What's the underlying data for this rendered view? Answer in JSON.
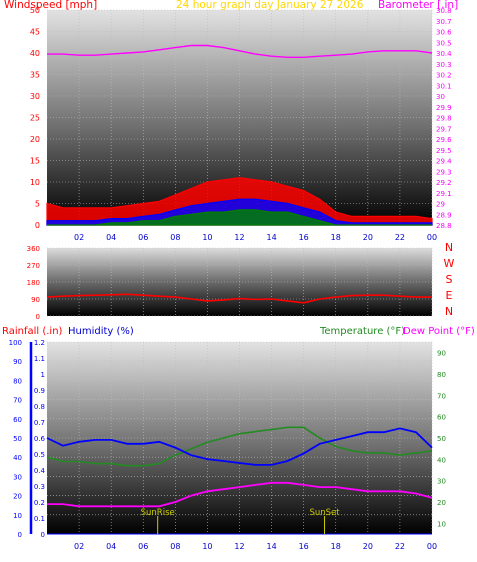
{
  "colors": {
    "wind": "#ff0000",
    "gust_inner": "#0000ff",
    "gust_core": "#008000",
    "barometer": "#ff00ff",
    "direction": "#ff0000",
    "humidity": "#0000ff",
    "temperature": "#228b22",
    "dewpoint": "#ff00ff",
    "rain": "#0000ff",
    "sun": "#cccc00",
    "title": "#ffd700",
    "hour_label": "#0000cc",
    "grid": "#bdbdbd"
  },
  "chart_data": [
    {
      "type": "line",
      "panel": "wind",
      "title": "24 hour graph day  January 27 2026",
      "ylabel_left": "Windspeed [mph]",
      "ylabel_right": "Barometer [.in]",
      "x_ticks": [
        "02",
        "04",
        "06",
        "08",
        "10",
        "12",
        "14",
        "16",
        "18",
        "20",
        "22",
        "00"
      ],
      "y_left_ticks": [
        "0",
        "5",
        "10",
        "15",
        "20",
        "25",
        "30",
        "35",
        "40",
        "45",
        "50"
      ],
      "y_left_lim": [
        0,
        50
      ],
      "y_right_ticks": [
        "28.8",
        "28.9",
        "29",
        "29.1",
        "29.2",
        "29.3",
        "29.4",
        "29.5",
        "29.6",
        "29.7",
        "29.8",
        "29.9",
        "30",
        "30.1",
        "30.2",
        "30.3",
        "30.4",
        "30.5",
        "30.6",
        "30.7",
        "30.8"
      ],
      "y_right_lim": [
        28.8,
        30.8
      ],
      "x": [
        0,
        1,
        2,
        3,
        4,
        5,
        6,
        7,
        8,
        9,
        10,
        11,
        12,
        13,
        14,
        15,
        16,
        17,
        18,
        19,
        20,
        21,
        22,
        23,
        24
      ],
      "series": [
        {
          "name": "Windspeed gust",
          "values": [
            5,
            4,
            4,
            4,
            4,
            4.5,
            5,
            5.5,
            7,
            8.5,
            10,
            10.5,
            11,
            10.5,
            10,
            9,
            8,
            6,
            3,
            2,
            2,
            2,
            2,
            2,
            1.5
          ]
        },
        {
          "name": "Windspeed average",
          "values": [
            1,
            1,
            1,
            1,
            1.5,
            1.5,
            2,
            2.5,
            3.5,
            4.5,
            5,
            5.5,
            6,
            6,
            5.5,
            5,
            4,
            3,
            1,
            0.5,
            0.5,
            0.5,
            0.5,
            0.5,
            0.5
          ]
        },
        {
          "name": "Windspeed low",
          "values": [
            0,
            0,
            0,
            0,
            0.5,
            0.5,
            1,
            1,
            2,
            2.5,
            3,
            3,
            3.5,
            3.5,
            3,
            3,
            2,
            1,
            0,
            0,
            0,
            0,
            0,
            0,
            0
          ]
        },
        {
          "name": "Barometer",
          "values": [
            30.39,
            30.39,
            30.38,
            30.38,
            30.39,
            30.4,
            30.41,
            30.43,
            30.45,
            30.47,
            30.47,
            30.45,
            30.42,
            30.39,
            30.37,
            30.36,
            30.36,
            30.37,
            30.38,
            30.39,
            30.41,
            30.42,
            30.42,
            30.42,
            30.4
          ]
        }
      ]
    },
    {
      "type": "line",
      "panel": "direction",
      "y_ticks": [
        "360",
        "270",
        "180",
        "90",
        "0"
      ],
      "ylim": [
        0,
        360
      ],
      "direction_labels": [
        "N",
        "W",
        "S",
        "E",
        "N"
      ],
      "x": [
        0,
        1,
        2,
        3,
        4,
        5,
        6,
        7,
        8,
        9,
        10,
        11,
        12,
        13,
        14,
        15,
        16,
        17,
        18,
        19,
        20,
        21,
        22,
        23,
        24
      ],
      "series": [
        {
          "name": "Wind direction",
          "values": [
            100,
            105,
            108,
            110,
            112,
            115,
            110,
            105,
            100,
            90,
            80,
            85,
            92,
            88,
            90,
            80,
            70,
            90,
            100,
            108,
            110,
            110,
            105,
            100,
            100
          ]
        }
      ]
    },
    {
      "type": "line",
      "panel": "temperature",
      "label_rainfall": "Rainfall (.in)",
      "label_humidity": "Humidity (%)",
      "label_temperature": "Temperature (°F)",
      "label_dewpoint": "Dew Point (°F)",
      "y_humidity_ticks": [
        "0",
        "10",
        "20",
        "30",
        "40",
        "50",
        "60",
        "70",
        "80",
        "90",
        "100"
      ],
      "humidity_lim": [
        0,
        100
      ],
      "y_rain_ticks": [
        "0",
        "0.1",
        "0.2",
        "0.3",
        "0.4",
        "0.5",
        "0.6",
        "0.7",
        "0.8",
        "0.9",
        "1",
        "1.1",
        "1.2"
      ],
      "rain_lim": [
        0,
        1.2
      ],
      "y_temp_ticks": [
        "10",
        "20",
        "30",
        "40",
        "50",
        "60",
        "70",
        "80",
        "90"
      ],
      "temp_lim": [
        5,
        95
      ],
      "sunrise_label": "SunRise",
      "sunset_label": "SunSet",
      "sunrise_hour": 6.9,
      "sunset_hour": 17.3,
      "x": [
        0,
        1,
        2,
        3,
        4,
        5,
        6,
        7,
        8,
        9,
        10,
        11,
        12,
        13,
        14,
        15,
        16,
        17,
        18,
        19,
        20,
        21,
        22,
        23,
        24
      ],
      "series": [
        {
          "name": "Rainfall",
          "values": [
            0,
            0,
            0,
            0,
            0,
            0,
            0,
            0,
            0,
            0,
            0,
            0,
            0,
            0,
            0,
            0,
            0,
            0,
            0,
            0,
            0,
            0,
            0,
            0,
            0
          ]
        },
        {
          "name": "Humidity",
          "values": [
            50,
            46,
            48,
            49,
            49,
            47,
            47,
            48,
            45,
            41,
            39,
            38,
            37,
            36,
            36,
            38,
            42,
            47,
            49,
            51,
            53,
            53,
            55,
            53,
            45
          ]
        },
        {
          "name": "Temperature",
          "values": [
            41,
            39,
            39,
            38,
            38,
            37,
            37,
            38,
            42,
            45,
            48,
            50,
            52,
            53,
            54,
            55,
            55,
            50,
            46,
            44,
            43,
            43,
            42,
            43,
            44
          ]
        },
        {
          "name": "Dew Point",
          "values": [
            19,
            19,
            18,
            18,
            18,
            18,
            18,
            18,
            20,
            23,
            25,
            26,
            27,
            28,
            29,
            29,
            28,
            27,
            27,
            26,
            25,
            25,
            25,
            24,
            22
          ]
        }
      ]
    }
  ]
}
